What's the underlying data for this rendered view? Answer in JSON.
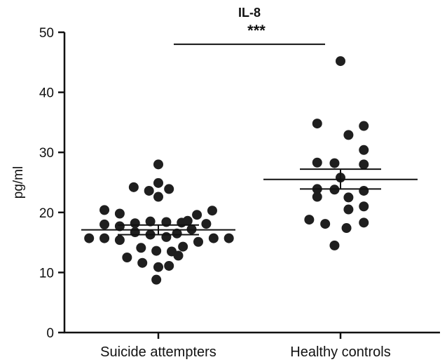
{
  "chart_data": {
    "type": "scatter",
    "title": "IL-8",
    "ylabel": "pg/ml",
    "xlabel": "",
    "ylim": [
      0,
      50
    ],
    "yticks": [
      0,
      10,
      20,
      30,
      40,
      50
    ],
    "grid": false,
    "categories": [
      "Suicide attempters",
      "Healthy controls"
    ],
    "colors": {
      "marker": "#1f1f1f",
      "axis": "#111111"
    },
    "significance": {
      "label": "***",
      "from": "Suicide attempters",
      "to": "Healthy controls",
      "y": 48
    },
    "series": [
      {
        "category": "Suicide attempters",
        "mean": 17.1,
        "sem_low": 16.3,
        "sem_high": 17.9,
        "points": [
          {
            "offset": 0.0,
            "y": 28.0
          },
          {
            "offset": -0.37,
            "y": 24.2
          },
          {
            "offset": -0.14,
            "y": 23.6
          },
          {
            "offset": 0.0,
            "y": 24.9
          },
          {
            "offset": 0.16,
            "y": 23.9
          },
          {
            "offset": 0.0,
            "y": 22.6
          },
          {
            "offset": -0.81,
            "y": 20.4
          },
          {
            "offset": -0.58,
            "y": 19.8
          },
          {
            "offset": 0.58,
            "y": 19.6
          },
          {
            "offset": 0.81,
            "y": 20.3
          },
          {
            "offset": -0.81,
            "y": 18.0
          },
          {
            "offset": -0.58,
            "y": 17.7
          },
          {
            "offset": -0.35,
            "y": 18.2
          },
          {
            "offset": -0.12,
            "y": 18.5
          },
          {
            "offset": 0.12,
            "y": 18.4
          },
          {
            "offset": 0.35,
            "y": 18.3
          },
          {
            "offset": 0.44,
            "y": 18.6
          },
          {
            "offset": 0.72,
            "y": 18.1
          },
          {
            "offset": -0.35,
            "y": 16.7
          },
          {
            "offset": -0.12,
            "y": 16.3
          },
          {
            "offset": 0.12,
            "y": 15.9
          },
          {
            "offset": 0.28,
            "y": 16.5
          },
          {
            "offset": 0.5,
            "y": 17.2
          },
          {
            "offset": -1.04,
            "y": 15.7
          },
          {
            "offset": -0.81,
            "y": 15.7
          },
          {
            "offset": -0.58,
            "y": 15.4
          },
          {
            "offset": 0.6,
            "y": 15.1
          },
          {
            "offset": 0.83,
            "y": 15.7
          },
          {
            "offset": 1.06,
            "y": 15.7
          },
          {
            "offset": -0.26,
            "y": 14.1
          },
          {
            "offset": 0.2,
            "y": 13.5
          },
          {
            "offset": -0.03,
            "y": 13.6
          },
          {
            "offset": 0.37,
            "y": 14.3
          },
          {
            "offset": -0.47,
            "y": 12.5
          },
          {
            "offset": 0.3,
            "y": 12.8
          },
          {
            "offset": -0.24,
            "y": 11.6
          },
          {
            "offset": 0.0,
            "y": 10.9
          },
          {
            "offset": 0.16,
            "y": 11.1
          },
          {
            "offset": -0.03,
            "y": 8.8
          }
        ]
      },
      {
        "category": "Healthy controls",
        "mean": 25.5,
        "sem_low": 23.9,
        "sem_high": 27.2,
        "points": [
          {
            "offset": 0.0,
            "y": 45.2
          },
          {
            "offset": -0.35,
            "y": 34.8
          },
          {
            "offset": 0.35,
            "y": 34.4
          },
          {
            "offset": 0.12,
            "y": 32.9
          },
          {
            "offset": 0.35,
            "y": 30.4
          },
          {
            "offset": -0.35,
            "y": 28.3
          },
          {
            "offset": -0.09,
            "y": 28.2
          },
          {
            "offset": 0.35,
            "y": 28.0
          },
          {
            "offset": 0.0,
            "y": 25.8
          },
          {
            "offset": -0.35,
            "y": 23.9
          },
          {
            "offset": -0.09,
            "y": 23.8
          },
          {
            "offset": 0.35,
            "y": 23.6
          },
          {
            "offset": -0.35,
            "y": 22.6
          },
          {
            "offset": 0.12,
            "y": 22.5
          },
          {
            "offset": 0.35,
            "y": 21.0
          },
          {
            "offset": 0.12,
            "y": 20.5
          },
          {
            "offset": -0.47,
            "y": 18.8
          },
          {
            "offset": -0.23,
            "y": 18.1
          },
          {
            "offset": 0.35,
            "y": 18.3
          },
          {
            "offset": 0.09,
            "y": 17.4
          },
          {
            "offset": -0.09,
            "y": 14.5
          }
        ]
      }
    ]
  }
}
